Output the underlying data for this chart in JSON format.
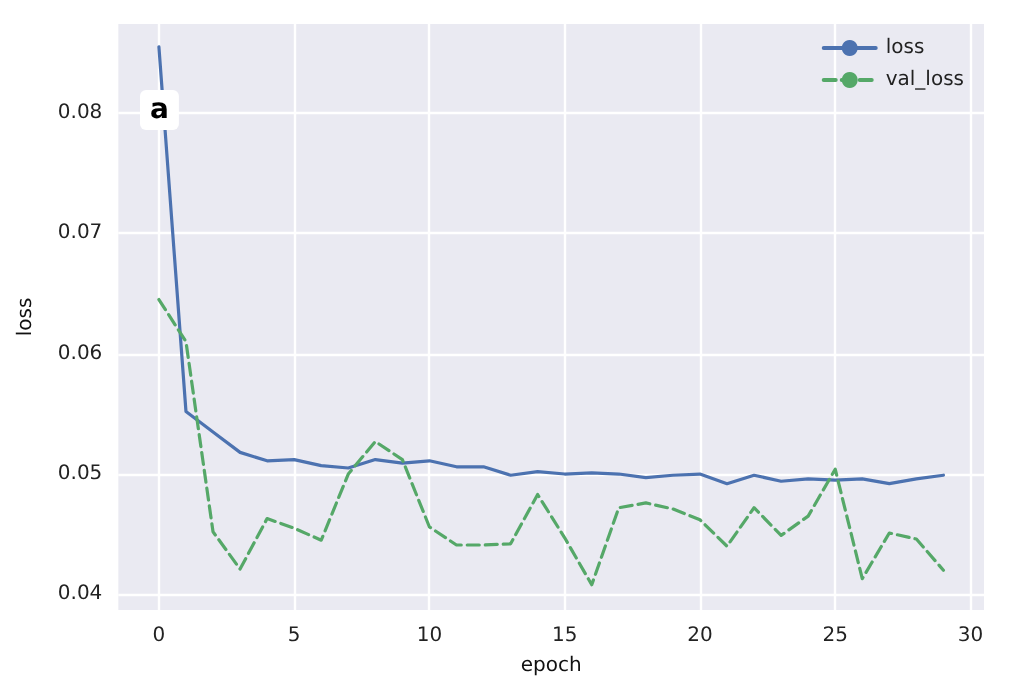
{
  "chart_data": {
    "type": "line",
    "xlabel": "epoch",
    "ylabel": "loss",
    "annotations": [
      "a"
    ],
    "x": [
      0,
      1,
      2,
      3,
      4,
      5,
      6,
      7,
      8,
      9,
      10,
      11,
      12,
      13,
      14,
      15,
      16,
      17,
      18,
      19,
      20,
      21,
      22,
      23,
      24,
      25,
      26,
      27,
      28,
      29
    ],
    "series": [
      {
        "name": "loss",
        "color": "#4c72b0",
        "line_style": "solid",
        "values": [
          0.0855,
          0.0552,
          0.0535,
          0.0518,
          0.0511,
          0.0512,
          0.0507,
          0.0505,
          0.0512,
          0.0509,
          0.0511,
          0.0506,
          0.0506,
          0.0499,
          0.0502,
          0.05,
          0.0501,
          0.05,
          0.0497,
          0.0499,
          0.05,
          0.0492,
          0.0499,
          0.0494,
          0.0496,
          0.0495,
          0.0496,
          0.0492,
          0.0496,
          0.0499
        ]
      },
      {
        "name": "val_loss",
        "color": "#55a868",
        "line_style": "dashed",
        "values": [
          0.0645,
          0.061,
          0.0452,
          0.0421,
          0.0463,
          0.0455,
          0.0445,
          0.05,
          0.0527,
          0.0512,
          0.0456,
          0.0441,
          0.0441,
          0.0442,
          0.0483,
          0.0447,
          0.0408,
          0.0472,
          0.0476,
          0.0471,
          0.0462,
          0.044,
          0.0472,
          0.0449,
          0.0465,
          0.0504,
          0.0413,
          0.0451,
          0.0446,
          0.042
        ]
      }
    ],
    "xlim": [
      -1.5,
      30.5
    ],
    "xticks": [
      0,
      5,
      10,
      15,
      20,
      25,
      30
    ],
    "ylim": [
      0.0387,
      0.0874
    ],
    "yticks": [
      0.04,
      0.05,
      0.06,
      0.07,
      0.08
    ],
    "grid": true,
    "legend": "top right",
    "marker": "none"
  }
}
